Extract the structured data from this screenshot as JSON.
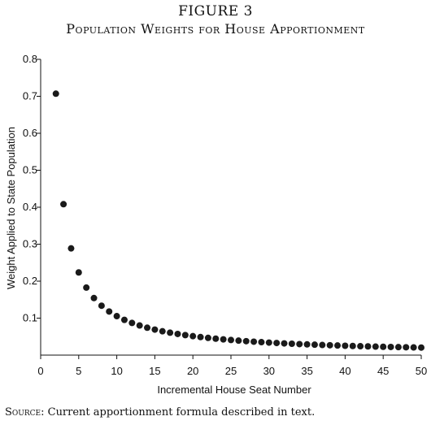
{
  "figure_label": "FIGURE 3",
  "figure_title": "Population Weights for House Apportionment",
  "source": {
    "lead": "Source:",
    "text": " Current apportionment formula described in text."
  },
  "chart_data": {
    "type": "scatter",
    "xlabel": "Incremental House Seat Number",
    "ylabel": "Weight Applied to State Population",
    "xlim": [
      0,
      50
    ],
    "ylim": [
      0,
      0.8
    ],
    "xticks": [
      0,
      5,
      10,
      15,
      20,
      25,
      30,
      35,
      40,
      45,
      50
    ],
    "yticks": [
      0.1,
      0.2,
      0.3,
      0.4,
      0.5,
      0.6,
      0.7,
      0.8
    ],
    "grid": false,
    "marker_color": "#1a1a1a",
    "x": [
      2,
      3,
      4,
      5,
      6,
      7,
      8,
      9,
      10,
      11,
      12,
      13,
      14,
      15,
      16,
      17,
      18,
      19,
      20,
      21,
      22,
      23,
      24,
      25,
      26,
      27,
      28,
      29,
      30,
      31,
      32,
      33,
      34,
      35,
      36,
      37,
      38,
      39,
      40,
      41,
      42,
      43,
      44,
      45,
      46,
      47,
      48,
      49,
      50
    ],
    "y": [
      0.7071,
      0.4082,
      0.2887,
      0.2236,
      0.1826,
      0.1543,
      0.1336,
      0.1179,
      0.1054,
      0.0953,
      0.087,
      0.0801,
      0.0741,
      0.069,
      0.0645,
      0.0606,
      0.0572,
      0.0541,
      0.0513,
      0.0488,
      0.0466,
      0.0445,
      0.0426,
      0.0408,
      0.0392,
      0.0377,
      0.0363,
      0.0351,
      0.0339,
      0.0328,
      0.0317,
      0.0308,
      0.0298,
      0.029,
      0.0282,
      0.0274,
      0.0267,
      0.026,
      0.0253,
      0.0247,
      0.0241,
      0.0236,
      0.023,
      0.0225,
      0.0221,
      0.0216,
      0.0212,
      0.0208,
      0.0204
    ]
  }
}
